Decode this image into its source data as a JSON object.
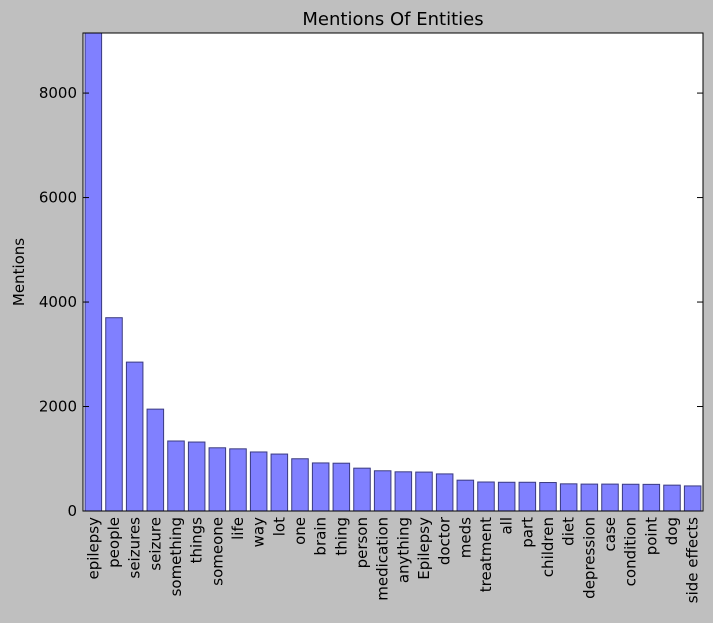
{
  "chart_data": {
    "type": "bar",
    "title": "Mentions Of Entities",
    "xlabel": "",
    "ylabel": "Mentions",
    "ylim": [
      0,
      9150
    ],
    "yticks": [
      0,
      2000,
      4000,
      6000,
      8000
    ],
    "grid": false,
    "bar_color": "#8080ff",
    "bar_edge_color": "#3a3a80",
    "categories": [
      "epilepsy",
      "people",
      "seizures",
      "seizure",
      "something",
      "things",
      "someone",
      "life",
      "way",
      "lot",
      "one",
      "brain",
      "thing",
      "person",
      "medication",
      "anything",
      "Epilepsy",
      "doctor",
      "meds",
      "treatment",
      "all",
      "part",
      "children",
      "diet",
      "depression",
      "case",
      "condition",
      "point",
      "dog",
      "side effects"
    ],
    "values": [
      9150,
      3700,
      2850,
      1950,
      1340,
      1320,
      1210,
      1190,
      1130,
      1090,
      1000,
      920,
      915,
      820,
      770,
      750,
      745,
      710,
      590,
      555,
      550,
      550,
      545,
      520,
      515,
      515,
      512,
      510,
      495,
      480
    ]
  },
  "colors": {
    "background": "#bfbfbf",
    "plot_background": "#ffffff"
  }
}
